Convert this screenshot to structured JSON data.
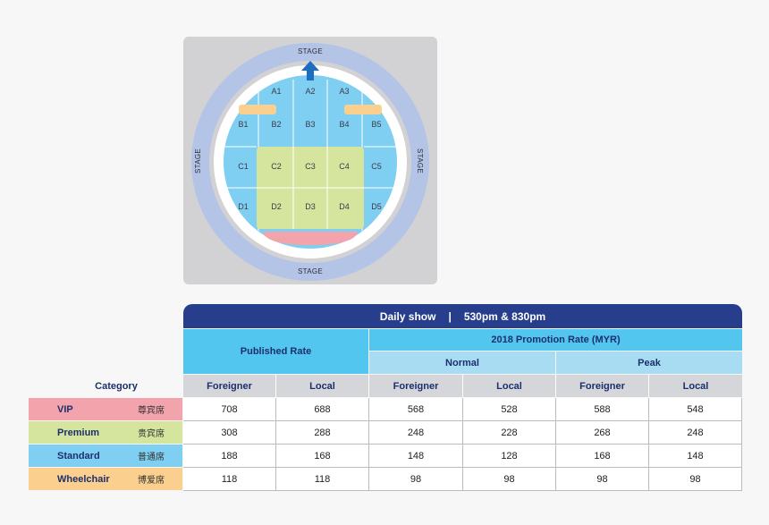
{
  "seating_map": {
    "stage_top": "STAGE",
    "stage_bottom": "STAGE",
    "stage_left": "STAGE",
    "stage_right": "STAGE",
    "sections": [
      "A1",
      "A2",
      "A3",
      "B1",
      "B2",
      "B3",
      "B4",
      "B5",
      "C1",
      "C2",
      "C3",
      "C4",
      "C5",
      "D1",
      "D2",
      "D3",
      "D4",
      "D5"
    ],
    "colors": {
      "outer_ring": "#b3c4e6",
      "inner_ring": "#d2d2d4",
      "standard": "#7fcff2",
      "premium": "#d5e59d",
      "vip": "#f2a3ab",
      "wheelchair": "#fbcf8d",
      "arrow": "#1d6dc0"
    }
  },
  "table": {
    "title_left": "Daily show",
    "title_sep": "|",
    "title_right": "530pm & 830pm",
    "published_rate": "Published Rate",
    "promotion_rate": "2018 Promotion Rate (MYR)",
    "normal": "Normal",
    "peak": "Peak",
    "category_header": "Category",
    "col_headers": [
      "Foreigner",
      "Local",
      "Foreigner",
      "Local",
      "Foreigner",
      "Local"
    ],
    "rows": [
      {
        "name": "VIP",
        "zh": "尊宾席",
        "color": "#f2a3ab",
        "values": [
          "708",
          "688",
          "568",
          "528",
          "588",
          "548"
        ]
      },
      {
        "name": "Premium",
        "zh": "贵宾席",
        "color": "#d5e59d",
        "values": [
          "308",
          "288",
          "248",
          "228",
          "268",
          "248"
        ]
      },
      {
        "name": "Standard",
        "zh": "普通席",
        "color": "#7fcff2",
        "values": [
          "188",
          "168",
          "148",
          "128",
          "168",
          "148"
        ]
      },
      {
        "name": "Wheelchair",
        "zh": "博爱席",
        "color": "#fbcf8d",
        "values": [
          "118",
          "118",
          "98",
          "98",
          "98",
          "98"
        ]
      }
    ]
  }
}
